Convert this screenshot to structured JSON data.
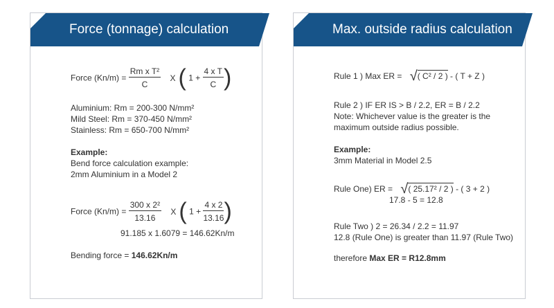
{
  "left": {
    "title": "Force (tonnage) calculation",
    "formula": {
      "lhs": "Force (Kn/m) =",
      "num1": "Rm x T²",
      "den1": "C",
      "times": "X",
      "one": "1 +",
      "num2": "4 x T",
      "den2": "C"
    },
    "materials": [
      "Aluminium: Rm = 200-300 N/mm²",
      "Mild Steel: Rm = 370-450 N/mm²",
      "Stainless: Rm = 650-700 N/mm²"
    ],
    "example_label": "Example:",
    "example_lines": [
      "Bend force calculation example:",
      "2mm Aluminium in a Model 2"
    ],
    "formula2": {
      "lhs": "Force (Kn/m) =",
      "num1": "300 x 2²",
      "den1": "13.16",
      "times": "X",
      "one": "1 +",
      "num2": "4 x 2",
      "den2": "13.16"
    },
    "calc": "91.185 x 1.6079 = 146.62Kn/m",
    "result_label": "Bending force = ",
    "result_value": "146.62Kn/m"
  },
  "right": {
    "title": "Max. outside radius calculation",
    "rule1_lhs": "Rule 1 ) Max ER =",
    "rule1_rad": "( C² / 2 )",
    "rule1_rest": "- ( T + Z )",
    "rule2": "Rule 2 ) IF ER IS > B / 2.2, ER = B / 2.2",
    "note": [
      "Note: Whichever value is the greater is the",
      "maximum outside radius possible."
    ],
    "example_label": "Example:",
    "example_line": "3mm Material in Model 2.5",
    "ruleone_lhs": "Rule One) ER =",
    "ruleone_rad": "( 25.17² / 2 )",
    "ruleone_rest": "- ( 3 + 2 )",
    "ruleone_calc": "17.8 - 5 = 12.8",
    "ruletwo_label": "Rule Two ) 2 = 26.34 / 2.2 = 11.97",
    "ruletwo_line": "12.8 (Rule One) is greater than 11.97 (Rule Two)",
    "therefore": "therefore ",
    "final": "Max ER = R12.8mm"
  }
}
